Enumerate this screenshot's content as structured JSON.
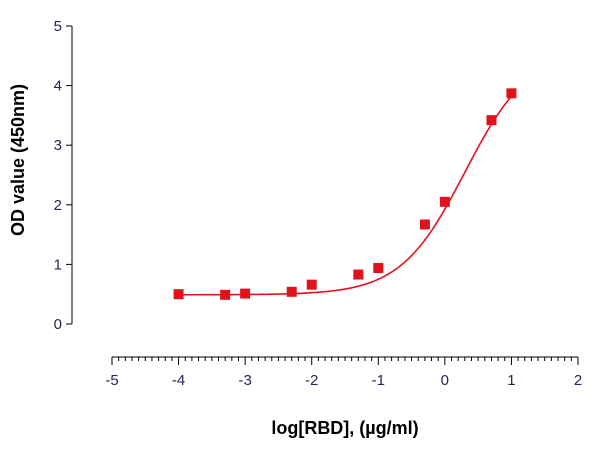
{
  "chart_data": {
    "type": "scatter",
    "title": "",
    "xlabel": "log[RBD], (µg/ml)",
    "ylabel": "OD value (450nm)",
    "xlim": [
      -5,
      2
    ],
    "ylim": [
      0,
      5
    ],
    "x_ticks": [
      -5,
      -4,
      -3,
      -2,
      -1,
      0,
      1,
      2
    ],
    "y_ticks": [
      0,
      1,
      2,
      3,
      4,
      5
    ],
    "x_tick_labels": [
      "-5",
      "-4",
      "-3",
      "-2",
      "-1",
      "0",
      "1",
      "2"
    ],
    "y_tick_labels": [
      "0",
      "1",
      "2",
      "3",
      "4",
      "5"
    ],
    "x_minor_per_major": 10,
    "grid": false,
    "series": [
      {
        "color": "#e0121b",
        "marker": "square",
        "fit": "sigmoidal curve",
        "x": [
          -4,
          -3.3,
          -3,
          -2.3,
          -2,
          -1.3,
          -1,
          -0.3,
          0,
          0.7,
          1
        ],
        "y": [
          0.5,
          0.49,
          0.51,
          0.54,
          0.66,
          0.83,
          0.94,
          1.67,
          2.05,
          3.42,
          3.87
        ]
      }
    ],
    "curve": {
      "bottom": 0.49,
      "top": 4.6,
      "logEC50": 0.3,
      "hill": 0.9
    }
  }
}
